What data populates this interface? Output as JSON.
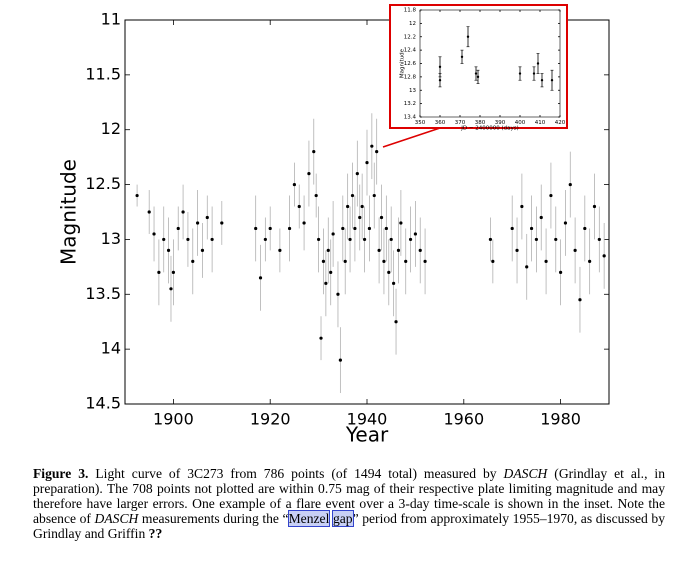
{
  "chart_data": [
    {
      "type": "scatter",
      "xlabel": "Year",
      "ylabel": "Magnitude",
      "xlim": [
        1890,
        1990
      ],
      "xticks": [
        1900,
        1920,
        1940,
        1960,
        1980
      ],
      "ylim": [
        14.5,
        11
      ],
      "yticks": [
        11,
        11.5,
        12,
        12.5,
        13,
        13.5,
        14,
        14.5
      ],
      "color": "#000000",
      "error_color": "#b0b0b0",
      "x": [
        1892.5,
        1895,
        1896,
        1897,
        1898,
        1899,
        1899.5,
        1900,
        1901,
        1902,
        1903,
        1904,
        1905,
        1906,
        1907,
        1908,
        1910,
        1917,
        1918,
        1919,
        1920,
        1922,
        1924,
        1925,
        1926,
        1927,
        1928,
        1929,
        1929.5,
        1930,
        1930.5,
        1931,
        1931.5,
        1932,
        1932.5,
        1933,
        1934,
        1934.5,
        1935,
        1935.5,
        1936,
        1936.5,
        1937,
        1937.5,
        1938,
        1938.5,
        1939,
        1939.5,
        1940,
        1940.5,
        1941,
        1941.5,
        1942,
        1942.5,
        1943,
        1943.5,
        1944,
        1944.5,
        1945,
        1945.5,
        1946,
        1946.5,
        1947,
        1948,
        1949,
        1950,
        1951,
        1952,
        1965.5,
        1966,
        1970,
        1971,
        1972,
        1973,
        1974,
        1975,
        1976,
        1977,
        1978,
        1979,
        1980,
        1981,
        1982,
        1983,
        1984,
        1985,
        1986,
        1987,
        1988,
        1989
      ],
      "values": [
        12.6,
        12.75,
        12.95,
        13.3,
        13.0,
        13.1,
        13.45,
        13.3,
        12.9,
        12.75,
        13.0,
        13.2,
        12.85,
        13.1,
        12.8,
        13.0,
        12.85,
        12.9,
        13.35,
        13.0,
        12.9,
        13.1,
        12.9,
        12.5,
        12.7,
        12.85,
        12.4,
        12.2,
        12.6,
        13.0,
        13.9,
        13.2,
        13.4,
        13.1,
        13.3,
        12.95,
        13.5,
        14.1,
        12.9,
        13.2,
        12.7,
        13.0,
        12.6,
        12.9,
        12.4,
        12.8,
        12.7,
        13.0,
        12.3,
        12.9,
        12.15,
        12.6,
        12.2,
        13.1,
        12.8,
        13.2,
        12.9,
        13.3,
        13.0,
        13.4,
        13.75,
        13.1,
        12.85,
        13.2,
        13.0,
        12.95,
        13.1,
        13.2,
        13.0,
        13.2,
        12.9,
        13.1,
        12.7,
        13.25,
        12.9,
        13.0,
        12.8,
        13.2,
        12.6,
        13.0,
        13.3,
        12.85,
        12.5,
        13.1,
        13.55,
        12.9,
        13.2,
        12.7,
        13.0,
        13.15
      ],
      "errors": [
        0.1,
        0.2,
        0.25,
        0.3,
        0.3,
        0.3,
        0.3,
        0.3,
        0.2,
        0.25,
        0.25,
        0.3,
        0.3,
        0.25,
        0.2,
        0.3,
        0.2,
        0.3,
        0.3,
        0.2,
        0.2,
        0.2,
        0.3,
        0.2,
        0.2,
        0.25,
        0.3,
        0.3,
        0.2,
        0.3,
        0.2,
        0.3,
        0.3,
        0.3,
        0.3,
        0.3,
        0.3,
        0.3,
        0.3,
        0.3,
        0.3,
        0.3,
        0.3,
        0.3,
        0.3,
        0.3,
        0.3,
        0.3,
        0.3,
        0.3,
        0.3,
        0.3,
        0.3,
        0.3,
        0.3,
        0.3,
        0.3,
        0.3,
        0.3,
        0.3,
        0.3,
        0.3,
        0.3,
        0.3,
        0.3,
        0.3,
        0.3,
        0.3,
        0.2,
        0.2,
        0.3,
        0.3,
        0.3,
        0.3,
        0.3,
        0.3,
        0.3,
        0.3,
        0.3,
        0.3,
        0.3,
        0.3,
        0.3,
        0.3,
        0.3,
        0.3,
        0.3,
        0.3,
        0.3,
        0.3
      ]
    },
    {
      "type": "scatter",
      "xlabel": "JD − 2400000 (days)",
      "ylabel": "Magnitude",
      "xlim": [
        350,
        420
      ],
      "xticks": [
        350,
        360,
        370,
        380,
        390,
        400,
        410,
        420
      ],
      "ylim": [
        13.4,
        11.8
      ],
      "yticks": [
        11.8,
        12,
        12.2,
        12.4,
        12.6,
        12.8,
        13,
        13.2,
        13.4
      ],
      "color": "#000000",
      "error_color": "#000000",
      "x": [
        360,
        360,
        371,
        374,
        378,
        379,
        400,
        407,
        409,
        411,
        416
      ],
      "values": [
        12.65,
        12.85,
        12.5,
        12.2,
        12.75,
        12.8,
        12.75,
        12.75,
        12.6,
        12.85,
        12.85
      ],
      "errors": [
        0.15,
        0.1,
        0.1,
        0.15,
        0.1,
        0.1,
        0.1,
        0.1,
        0.15,
        0.1,
        0.15
      ]
    }
  ],
  "caption": {
    "parts": [
      {
        "style": "bold",
        "text": "Figure 3."
      },
      {
        "style": "plain",
        "text": " Light curve of 3C273 from 786 points (of 1494 total) measured by "
      },
      {
        "style": "italic",
        "text": "DASCH"
      },
      {
        "style": "plain",
        "text": " (Grindlay et al., in preparation). The 708 points not plotted are within 0.75 mag of their respective plate limiting magnitude and may therefore have larger errors. One example of a flare event over a 3-day time-scale is shown in the inset. Note the absence of "
      },
      {
        "style": "italic",
        "text": "DASCH"
      },
      {
        "style": "plain",
        "text": " measurements during the “"
      },
      {
        "style": "link",
        "text": "Menzel"
      },
      {
        "style": "plain",
        "text": " "
      },
      {
        "style": "link",
        "text": "gap"
      },
      {
        "style": "plain",
        "text": "” period from approximately 1955–1970, as discussed by Grindlay and Griffin "
      },
      {
        "style": "bold",
        "text": "??"
      }
    ]
  }
}
